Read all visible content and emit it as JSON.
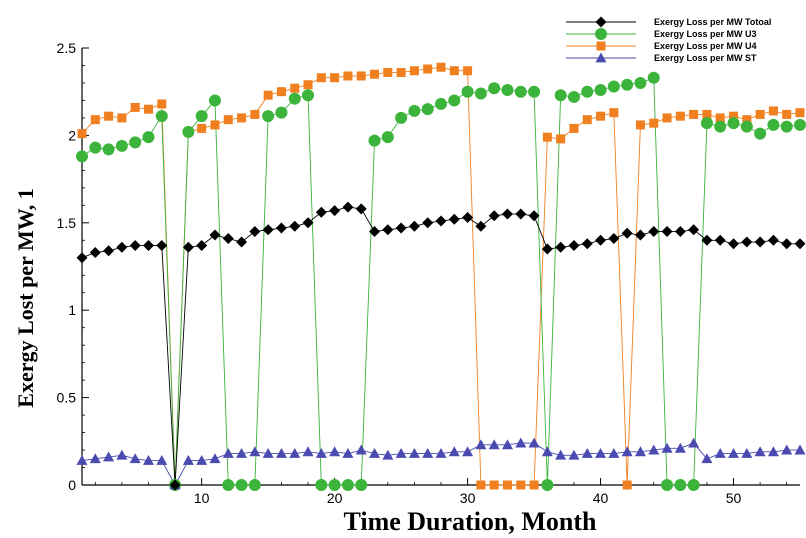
{
  "chart_data": {
    "type": "line",
    "title": "",
    "xlabel": "Time Duration, Month",
    "ylabel": "Exergy Lost per MW, 1",
    "xlim": [
      1,
      55
    ],
    "ylim": [
      0,
      2.5
    ],
    "x_ticks": [
      10,
      20,
      30,
      40,
      50
    ],
    "y_ticks": [
      0,
      0.5,
      1,
      1.5,
      2,
      2.5
    ],
    "y_tick_labels": [
      "0",
      "0.5",
      "1",
      "1.5",
      "2",
      "2.5"
    ],
    "grid": false,
    "legend_position": "top-right",
    "x": [
      1,
      2,
      3,
      4,
      5,
      6,
      7,
      8,
      9,
      10,
      11,
      12,
      13,
      14,
      15,
      16,
      17,
      18,
      19,
      20,
      21,
      22,
      23,
      24,
      25,
      26,
      27,
      28,
      29,
      30,
      31,
      32,
      33,
      34,
      35,
      36,
      37,
      38,
      39,
      40,
      41,
      42,
      43,
      44,
      45,
      46,
      47,
      48,
      49,
      50,
      51,
      52,
      53,
      54,
      55
    ],
    "series": [
      {
        "name": "Exergy Loss per MW Totoal",
        "color": "#000000",
        "marker": "diamond",
        "values": [
          1.3,
          1.33,
          1.34,
          1.36,
          1.37,
          1.37,
          1.37,
          0.0,
          1.36,
          1.37,
          1.43,
          1.41,
          1.39,
          1.45,
          1.46,
          1.47,
          1.48,
          1.5,
          1.56,
          1.57,
          1.59,
          1.58,
          1.45,
          1.46,
          1.47,
          1.48,
          1.5,
          1.51,
          1.52,
          1.53,
          1.48,
          1.54,
          1.55,
          1.55,
          1.54,
          1.35,
          1.36,
          1.37,
          1.38,
          1.4,
          1.41,
          1.44,
          1.43,
          1.45,
          1.45,
          1.45,
          1.46,
          1.4,
          1.4,
          1.38,
          1.39,
          1.39,
          1.4,
          1.38,
          1.38
        ]
      },
      {
        "name": "Exergy Loss per MW U3",
        "color": "#3cb43c",
        "marker": "circle",
        "values": [
          1.88,
          1.93,
          1.92,
          1.94,
          1.96,
          1.99,
          2.11,
          0.0,
          2.02,
          2.11,
          2.2,
          0.0,
          0.0,
          0.0,
          2.11,
          2.13,
          2.21,
          2.23,
          0.0,
          0.0,
          0.0,
          0.0,
          1.97,
          1.99,
          2.1,
          2.14,
          2.15,
          2.18,
          2.2,
          2.25,
          2.24,
          2.27,
          2.26,
          2.25,
          2.25,
          0.0,
          2.23,
          2.22,
          2.25,
          2.26,
          2.28,
          2.29,
          2.3,
          2.33,
          0.0,
          0.0,
          0.0,
          2.07,
          2.05,
          2.07,
          2.05,
          2.01,
          2.06,
          2.05,
          2.06
        ]
      },
      {
        "name": "Exergy Loss per MW U4",
        "color": "#f07f20",
        "marker": "square",
        "values": [
          2.01,
          2.09,
          2.11,
          2.1,
          2.16,
          2.15,
          2.18,
          0.0,
          2.02,
          2.04,
          2.06,
          2.09,
          2.1,
          2.12,
          2.23,
          2.25,
          2.27,
          2.29,
          2.33,
          2.33,
          2.34,
          2.34,
          2.35,
          2.36,
          2.36,
          2.37,
          2.38,
          2.39,
          2.37,
          2.37,
          0.0,
          0.0,
          0.0,
          0.0,
          0.0,
          1.99,
          1.98,
          2.04,
          2.09,
          2.11,
          2.13,
          0.0,
          2.06,
          2.07,
          2.1,
          2.11,
          2.12,
          2.12,
          2.1,
          2.11,
          2.09,
          2.12,
          2.14,
          2.12,
          2.13
        ]
      },
      {
        "name": "Exergy Loss per MW ST",
        "color": "#4a4ab0",
        "marker": "triangle",
        "values": [
          0.14,
          0.15,
          0.16,
          0.17,
          0.15,
          0.14,
          0.14,
          0.0,
          0.14,
          0.14,
          0.15,
          0.18,
          0.18,
          0.19,
          0.18,
          0.18,
          0.18,
          0.19,
          0.18,
          0.19,
          0.18,
          0.2,
          0.18,
          0.17,
          0.18,
          0.18,
          0.18,
          0.18,
          0.19,
          0.19,
          0.23,
          0.23,
          0.23,
          0.24,
          0.24,
          0.19,
          0.17,
          0.17,
          0.18,
          0.18,
          0.18,
          0.19,
          0.19,
          0.2,
          0.21,
          0.21,
          0.24,
          0.15,
          0.18,
          0.18,
          0.18,
          0.19,
          0.19,
          0.2,
          0.2
        ]
      }
    ]
  }
}
